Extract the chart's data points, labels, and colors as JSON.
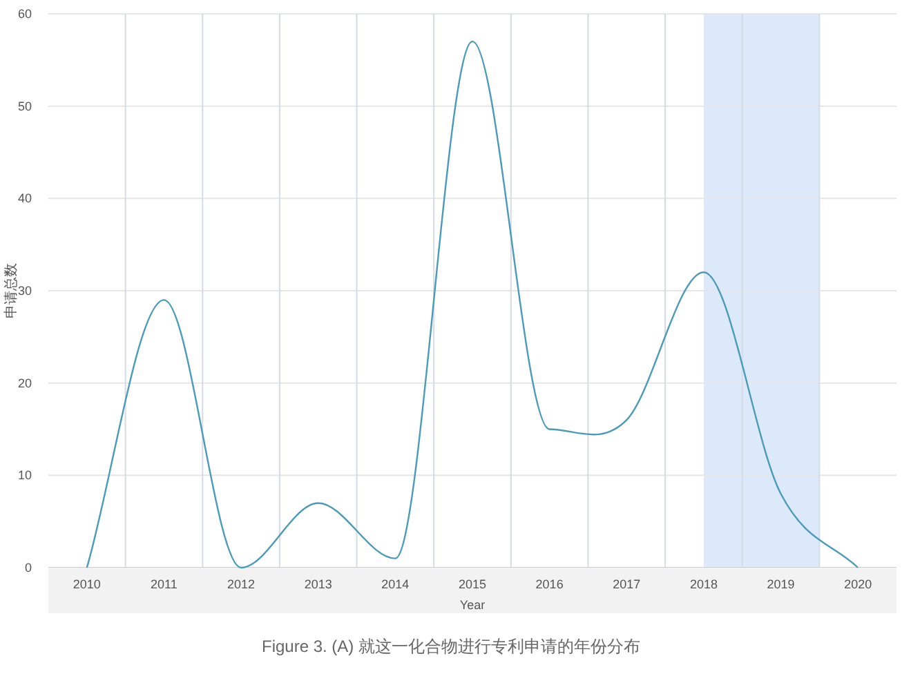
{
  "chart_data": {
    "type": "line",
    "xlabel": "Year",
    "ylabel": "申请总数",
    "x": [
      2010,
      2011,
      2012,
      2013,
      2014,
      2015,
      2016,
      2017,
      2018,
      2019,
      2020
    ],
    "series": [
      {
        "color": "#4a9bb8",
        "values": [
          0,
          29,
          0,
          7,
          1,
          57,
          15,
          16,
          32,
          8,
          0
        ]
      }
    ],
    "xlim": [
      2009.5,
      2020.5
    ],
    "xticks": [
      2010,
      2011,
      2012,
      2013,
      2014,
      2015,
      2016,
      2017,
      2018,
      2019,
      2020
    ],
    "ylim": [
      0,
      60
    ],
    "yticks": [
      0,
      10,
      20,
      30,
      40,
      50,
      60
    ],
    "grid": true,
    "marker": "none",
    "bands": [
      {
        "axis": "x",
        "from": 2018,
        "to": 2019.5,
        "color": "#dce9fb"
      }
    ],
    "annotations": [
      "Figure 3. (A) 就这一化合物进行专利申请的年份分布"
    ]
  }
}
